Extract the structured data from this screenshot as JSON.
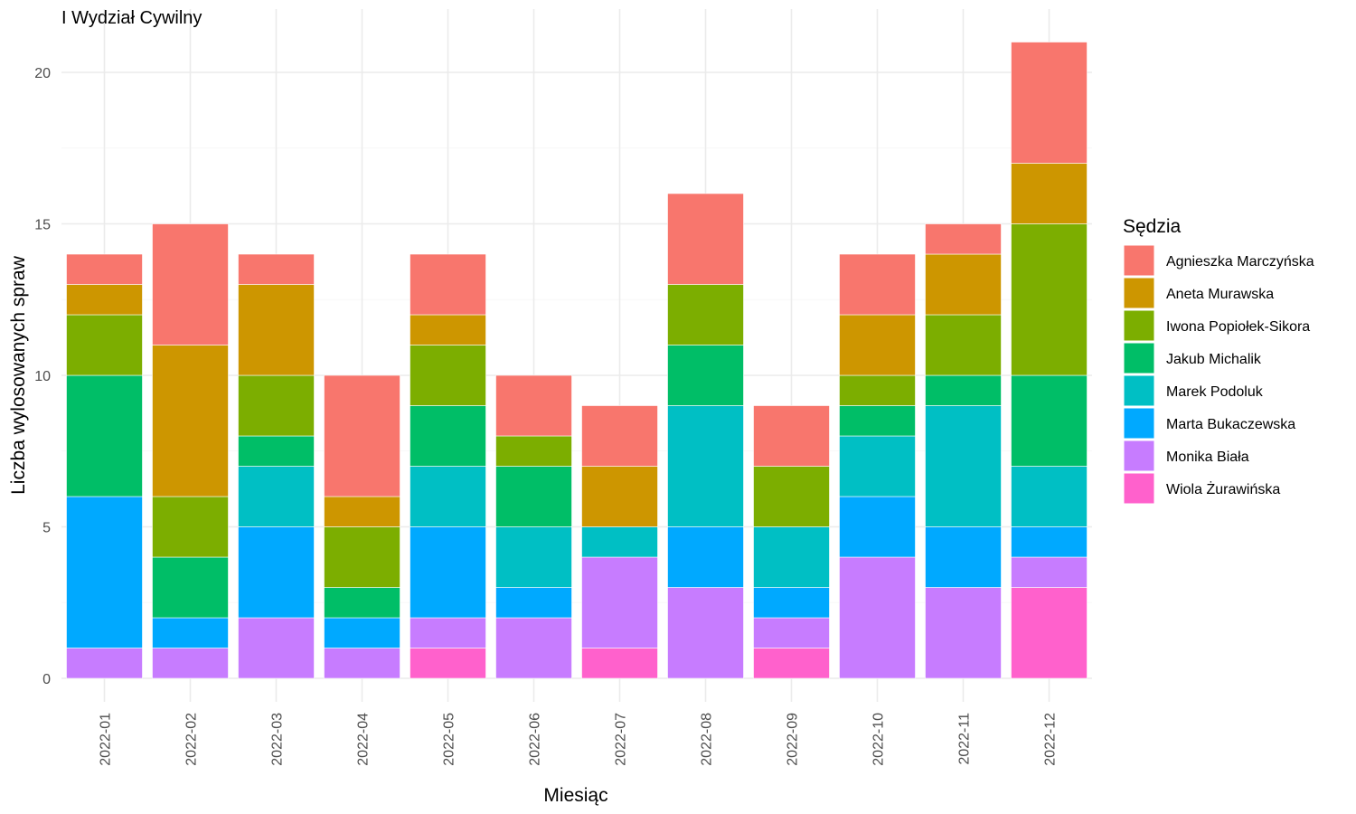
{
  "chart_data": {
    "type": "bar",
    "stacked": true,
    "title": "I Wydział Cywilny",
    "xlabel": "Miesiąc",
    "ylabel": "Liczba wylosowanych spraw",
    "ylim": [
      0,
      21
    ],
    "yticks": [
      0,
      5,
      10,
      15,
      20
    ],
    "grid": true,
    "legend": {
      "title": "Sędzia",
      "placement": "right"
    },
    "categories": [
      "2022-01",
      "2022-02",
      "2022-03",
      "2022-04",
      "2022-05",
      "2022-06",
      "2022-07",
      "2022-08",
      "2022-09",
      "2022-10",
      "2022-11",
      "2022-12"
    ],
    "series": [
      {
        "name": "Agnieszka Marczyńska",
        "color": "#F8766D",
        "values": [
          1,
          4,
          1,
          4,
          2,
          2,
          2,
          3,
          2,
          2,
          1,
          4
        ]
      },
      {
        "name": "Aneta Murawska",
        "color": "#CD9600",
        "values": [
          1,
          5,
          3,
          1,
          1,
          0,
          2,
          0,
          0,
          2,
          2,
          2
        ]
      },
      {
        "name": "Iwona Popiołek-Sikora",
        "color": "#7CAE00",
        "values": [
          2,
          2,
          2,
          2,
          2,
          1,
          0,
          2,
          2,
          1,
          2,
          5
        ]
      },
      {
        "name": "Jakub Michalik",
        "color": "#00BE67",
        "values": [
          4,
          2,
          1,
          1,
          2,
          2,
          0,
          2,
          0,
          1,
          1,
          3
        ]
      },
      {
        "name": "Marek Podoluk",
        "color": "#00BFC4",
        "values": [
          0,
          0,
          2,
          0,
          2,
          2,
          1,
          4,
          2,
          2,
          4,
          2
        ]
      },
      {
        "name": "Marta Bukaczewska",
        "color": "#00A9FF",
        "values": [
          5,
          1,
          3,
          1,
          3,
          1,
          0,
          2,
          1,
          2,
          2,
          1
        ]
      },
      {
        "name": "Monika Biała",
        "color": "#C77CFF",
        "values": [
          1,
          1,
          2,
          1,
          1,
          2,
          3,
          3,
          1,
          4,
          3,
          1
        ]
      },
      {
        "name": "Wiola Żurawińska",
        "color": "#FF61CC",
        "values": [
          0,
          0,
          0,
          0,
          1,
          0,
          1,
          0,
          1,
          0,
          0,
          3
        ]
      }
    ]
  }
}
